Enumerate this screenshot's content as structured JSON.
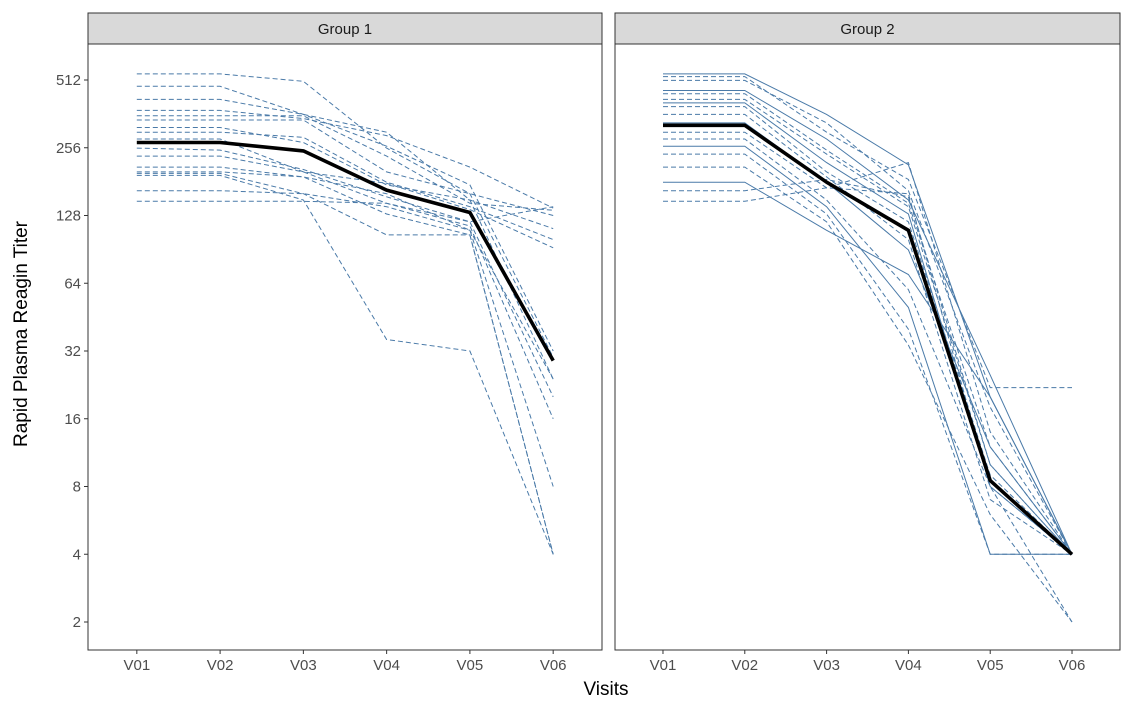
{
  "chart_data": {
    "type": "line",
    "xlabel": "Visits",
    "ylabel": "Rapid Plasma Reagin Titer",
    "y_scale": "log2",
    "ylim": [
      1.6,
      820
    ],
    "y_ticks": [
      2,
      4,
      8,
      16,
      32,
      64,
      128,
      256,
      512
    ],
    "categories": [
      "V01",
      "V02",
      "V03",
      "V04",
      "V05",
      "V06"
    ],
    "grid": false,
    "colors": {
      "subject": "#4a7aa8",
      "mean": "#000000",
      "strip": "#d9d9d9"
    },
    "panels": [
      {
        "strip_label": "Group 1",
        "mean": [
          270,
          270,
          248,
          166,
          132,
          29
        ],
        "subjects": [
          [
            545,
            545,
            505,
            255,
            160,
            30
          ],
          [
            480,
            480,
            360,
            260,
            175,
            32
          ],
          [
            420,
            420,
            360,
            300,
            150,
            24
          ],
          [
            375,
            375,
            345,
            290,
            210,
            138
          ],
          [
            355,
            355,
            355,
            235,
            145,
            135
          ],
          [
            340,
            340,
            340,
            200,
            160,
            128
          ],
          [
            315,
            315,
            270,
            175,
            150,
            112
          ],
          [
            300,
            300,
            285,
            180,
            140,
            100
          ],
          [
            280,
            280,
            200,
            178,
            136,
            92
          ],
          [
            255,
            250,
            205,
            155,
            120,
            20
          ],
          [
            235,
            235,
            200,
            145,
            115,
            16
          ],
          [
            210,
            210,
            190,
            160,
            110,
            8
          ],
          [
            200,
            200,
            190,
            130,
            105,
            4
          ],
          [
            197,
            197,
            160,
            105,
            105,
            4
          ],
          [
            193,
            193,
            150,
            36,
            32,
            4
          ],
          [
            165,
            165,
            160,
            140,
            110,
            24
          ],
          [
            148,
            148,
            148,
            145,
            120,
            140
          ]
        ]
      },
      {
        "strip_label": "Group 2",
        "mean": [
          322,
          322,
          180,
          110,
          8.5,
          4
        ],
        "subjects": [
          [
            545,
            545,
            360,
            215,
            20,
            4
          ],
          [
            530,
            530,
            300,
            185,
            22,
            22
          ],
          [
            510,
            510,
            330,
            165,
            18,
            4
          ],
          [
            460,
            460,
            280,
            150,
            25,
            4
          ],
          [
            445,
            445,
            250,
            145,
            12,
            4
          ],
          [
            420,
            420,
            240,
            140,
            10,
            4
          ],
          [
            405,
            405,
            220,
            130,
            8,
            4
          ],
          [
            390,
            390,
            200,
            120,
            9,
            4
          ],
          [
            360,
            360,
            190,
            100,
            7,
            4
          ],
          [
            330,
            330,
            180,
            90,
            12,
            4
          ],
          [
            300,
            300,
            170,
            220,
            14,
            4
          ],
          [
            280,
            280,
            150,
            60,
            8,
            4
          ],
          [
            260,
            260,
            140,
            50,
            4,
            4
          ],
          [
            240,
            240,
            130,
            40,
            4,
            4
          ],
          [
            210,
            210,
            120,
            34,
            6,
            2
          ],
          [
            180,
            180,
            110,
            70,
            20,
            4
          ],
          [
            165,
            165,
            185,
            155,
            10,
            4
          ],
          [
            148,
            148,
            170,
            160,
            8,
            2
          ]
        ]
      }
    ]
  }
}
